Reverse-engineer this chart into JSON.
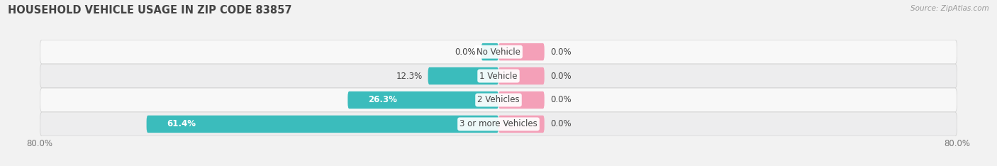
{
  "title": "HOUSEHOLD VEHICLE USAGE IN ZIP CODE 83857",
  "source": "Source: ZipAtlas.com",
  "categories": [
    "No Vehicle",
    "1 Vehicle",
    "2 Vehicles",
    "3 or more Vehicles"
  ],
  "owner_values": [
    0.0,
    12.3,
    26.3,
    61.4
  ],
  "renter_values": [
    0.0,
    0.0,
    0.0,
    0.0
  ],
  "owner_color": "#3BBCBC",
  "renter_color": "#F4A0B8",
  "row_bg_light": "#F8F8F8",
  "row_bg_dark": "#EDEDEE",
  "bar_stub": 3.0,
  "renter_stub": 8.0,
  "xlim": [
    -80,
    80
  ],
  "title_fontsize": 10.5,
  "source_fontsize": 7.5,
  "label_fontsize": 8.5,
  "legend_fontsize": 8.5,
  "figsize": [
    14.06,
    2.34
  ],
  "dpi": 100
}
